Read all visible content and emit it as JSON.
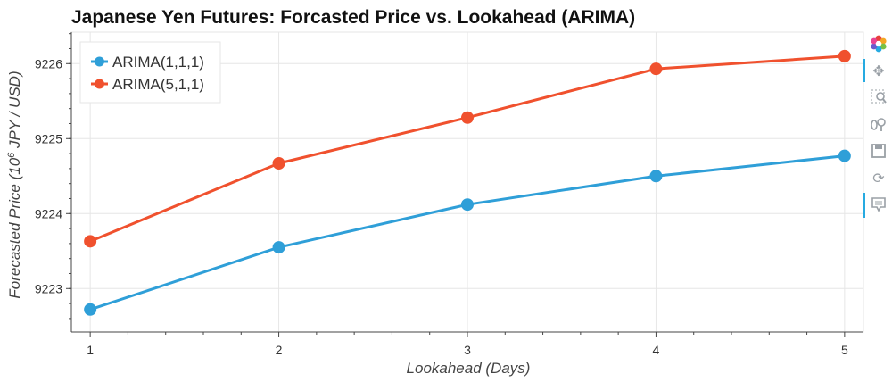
{
  "chart_data": {
    "type": "line",
    "title": "Japanese Yen Futures: Forcasted Price vs. Lookahead (ARIMA)",
    "xlabel": "Lookahead (Days)",
    "ylabel_pre": "Forecasted Price (10",
    "ylabel_sup": "6",
    "ylabel_post": " JPY / USD)",
    "x": [
      1,
      2,
      3,
      4,
      5
    ],
    "x_ticks": [
      "1",
      "2",
      "3",
      "4",
      "5"
    ],
    "xlim": [
      0.9,
      5.1
    ],
    "ylim": [
      9222.42,
      9226.42
    ],
    "y_ticks": [
      "9223",
      "9224",
      "9225",
      "9226"
    ],
    "grid": true,
    "legend_position": "top-left",
    "series": [
      {
        "name": "ARIMA(1,1,1)",
        "color": "#2f9fd8",
        "values": [
          9222.72,
          9223.55,
          9224.12,
          9224.5,
          9224.77
        ]
      },
      {
        "name": "ARIMA(5,1,1)",
        "color": "#f0512e",
        "values": [
          9223.63,
          9224.67,
          9225.28,
          9225.93,
          9226.1
        ]
      }
    ]
  },
  "toolbar": {
    "icons": [
      "bokeh-logo-icon",
      "pan-icon",
      "box-zoom-icon",
      "wheel-zoom-icon",
      "save-icon",
      "reset-icon",
      "hover-icon"
    ]
  }
}
